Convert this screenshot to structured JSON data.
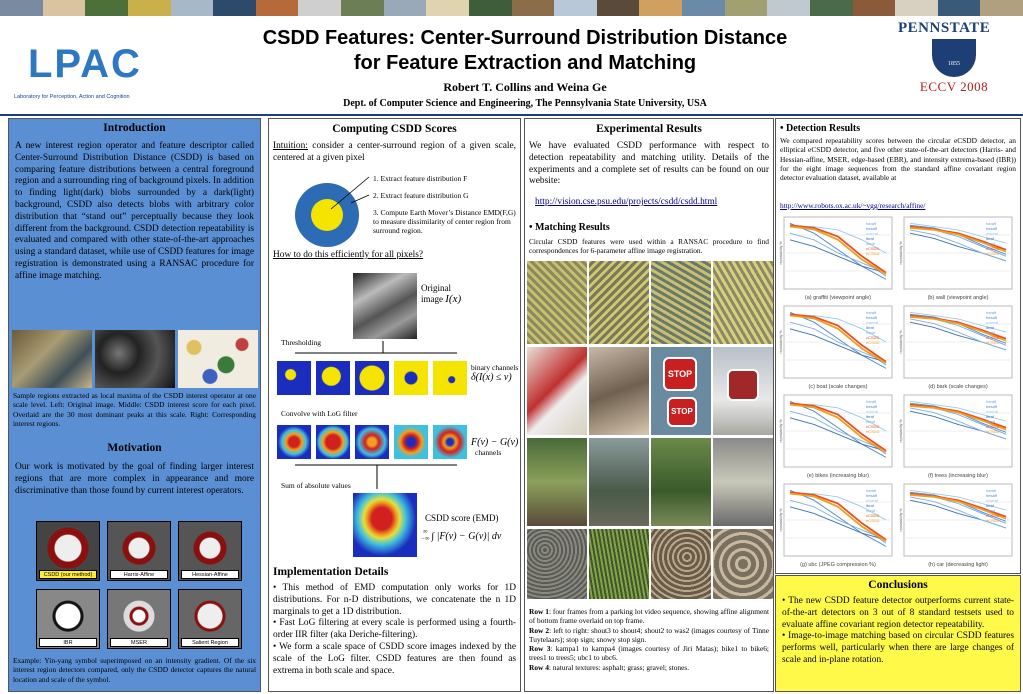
{
  "header": {
    "lpac_logo": "LPAC",
    "lpac_sub": "Laboratory for Perception, Action and Cognition",
    "title_line1": "CSDD Features: Center-Surround Distribution Distance",
    "title_line2": "for Feature Extraction and Matching",
    "authors": "Robert T. Collins and Weina Ge",
    "dept": "Dept. of Computer Science and Engineering, The Pennsylvania State University, USA",
    "psu_logo": "PENNSTATE",
    "psu_year": "1855",
    "eccv": "ECCV 2008"
  },
  "intro": {
    "heading": "Introduction",
    "body": "A new interest region operator and feature descriptor called Center-Surround Distribution Distance (CSDD) is based on comparing feature distributions between a central foreground region and a surrounding ring of background pixels.  In addition to finding light(dark) blobs surrounded by a dark(light) background, CSDD also detects blobs with arbitrary color distribution that “stand out” perceptually because they look different from the background. CSDD detection repeatability is evaluated and compared with other state-of-the-art approaches using a standard dataset, while use of CSDD features for image registration  is demonstrated using a RANSAC procedure for  affine image matching.",
    "caption": "Sample regions extracted as local maxima of the CSDD interest operator at one scale level. Left: Original image. Middle: CSDD interest score for each pixel. Overlaid are the 30 most dominant peaks at this scale. Right: Corresponding interest regions."
  },
  "motivation": {
    "heading": "Motivation",
    "body": "Our work is motivated by the goal of finding larger interest regions that are more complex in appearance and more discriminative than those found by current interest operators.",
    "labels": [
      "CSDD (our method)",
      "Harris-Affine",
      "Hessian-Affine",
      "IBR",
      "MSER",
      "Salient Region"
    ],
    "caption": "Example: Yin-yang symbol superimposed on an intensity gradient.  Of the six interest region detectors compared, only the CSDD detector captures the natural location and scale of the symbol."
  },
  "computing": {
    "heading": "Computing CSDD Scores",
    "intuition_label": "Intuition:",
    "intuition": " consider a center-surround region of a given scale, centered at a given pixel",
    "steps": [
      "1. Extract feature distribution F",
      "2. Extract feature distribution G",
      "3. Compute Earth Mover’s Distance EMD(F,G) to measure dissimilarity of center region from surround region."
    ],
    "efficient": "How to do this efficiently for all pixels?",
    "original": "Original",
    "image": "image",
    "image_math": "I(x)",
    "thresholding": "Thresholding",
    "binary": "binary channels",
    "binary_math": "δ(I(x) ≤ v)",
    "convolve": "Convolve with LoG filter",
    "fg_math": "F(v) − G(v)",
    "channels": "channels",
    "sum": "Sum of absolute values",
    "score": "CSDD score (EMD)",
    "integral": "∫ |F(v) − G(v)| dv",
    "int_upper": "∞",
    "int_lower": "−∞"
  },
  "implementation": {
    "heading": "Implementation Details",
    "items": [
      "• This method of EMD computation only works for 1D distributions.  For n-D distributions, we concatenate the n 1D marginals to get a 1D distribution.",
      "• Fast LoG filtering at every scale is performed using a fourth-order  IIR filter (aka Deriche-filtering).",
      "• We form a scale space of CSDD score images indexed by the scale of the LoG filter.  CSDD features are then found as extrema in both scale and space."
    ]
  },
  "experimental": {
    "heading": "Experimental Results",
    "body": "We have evaluated CSDD performance with respect to detection repeatability and matching utility.  Details of the experiments and a complete set of results can be found on our website:",
    "url": "http://vision.cse.psu.edu/projects/csdd/csdd.html",
    "matching_heading": "• Matching Results",
    "matching_body": "Circular CSDD features were used within a RANSAC procedure to find correspondences for 6-parameter affine image registration.",
    "rows": [
      {
        "label": "Row 1",
        "text": ": four frames from a parking lot video sequence, showing affine alignment of bottom frame overlaid on top frame."
      },
      {
        "label": "Row 2",
        "text": ": left to right: shout3 to shout4; shout2 to was2 (images courtesy of Tinne Tuytelaars); stop sign; snowy stop sign."
      },
      {
        "label": "Row  3",
        "text": ": kampa1 to kampa4 (images courtesy of Jiri Matas); bike1 to bike6; trees1 to trees5; ubc1 to ubc6."
      },
      {
        "label": "Row  4",
        "text": ": natural textures: asphalt; grass; gravel; stones."
      }
    ],
    "stop": "STOP"
  },
  "detection": {
    "heading": "• Detection Results",
    "body": "We compared repeatability scores between the circular eCSDD detector, an elliptical eCSDD detector,  and five other state-of-the-art detectors (Harris- and Hessian-affine, MSER, edge-based (EBR), and intensity extrema-based (IBR)) for the eight image sequences from the standard affine covariant region detector evaluation dataset, available at",
    "url": "http://www.robots.ox.ac.uk/~vgg/research/affine/",
    "plot_captions": [
      "(a) graffiti (viewpoint angle)",
      "(b) wall (viewpoint angle)",
      "(c) boat (scale changes)",
      "(d) bark (scale changes)",
      "(e) bikes (increasing blur)",
      "(f) trees (increasing blur)",
      "(g) ubc (JPEG compression %)",
      "(h) car (decreasing light)"
    ],
    "legend": [
      "haraff",
      "hesaff",
      "mseraf",
      "ibraf",
      "ebraf",
      "cCSDD",
      "eCSDD"
    ],
    "ylabel": "repeatability %"
  },
  "conclusions": {
    "heading": "Conclusions",
    "items": [
      "• The new CSDD feature detector outperforms current state-of-the-art detectors on 3 out of 8 standard testsets used to evaluate affine covariant region detector repeatability.",
      "• Image-to-image matching based on circular CSDD features performs well, particularly when there are large changes of scale and in-plane rotation."
    ]
  }
}
